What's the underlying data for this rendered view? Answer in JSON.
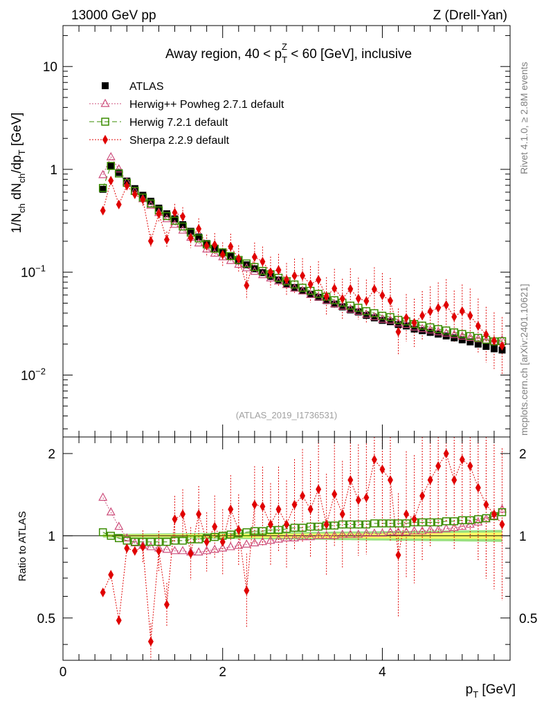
{
  "header": {
    "left": "13000 GeV pp",
    "right": "Z (Drell-Yan)"
  },
  "side_labels": {
    "rivet": "Rivet 4.1.0, ≥ 2.8M events",
    "mcplots": "mcplots.cern.ch [arXiv:2401.10621]"
  },
  "chart_data": {
    "type": "scatter",
    "title": "Away region, 40 < pTZ < 60 [GeV], inclusive",
    "title_parts": {
      "pre": "Away region, 40 < p",
      "sub": "T",
      "sup": "Z",
      "post": " < 60 [GeV], inclusive"
    },
    "analysis_tag": "(ATLAS_2019_I1736531)",
    "xlabel": "pT [GeV]",
    "ylabel": "1/Nch dNch/dpT [GeV]",
    "ratio_ylabel": "Ratio to ATLAS",
    "xlim": [
      0,
      5.6
    ],
    "ylim": [
      0.0025,
      25
    ],
    "ratio_ylim": [
      0.35,
      2.3
    ],
    "yscale": "log",
    "x_ticks": [
      "0",
      "2",
      "4"
    ],
    "y_ticks": [
      "10^-2",
      "10^-1",
      "1",
      "10"
    ],
    "ratio_ticks": [
      "0.5",
      "1",
      "2"
    ],
    "legend_position": "top-left",
    "x": [
      0.5,
      0.6,
      0.7,
      0.8,
      0.9,
      1.0,
      1.1,
      1.2,
      1.3,
      1.4,
      1.5,
      1.6,
      1.7,
      1.8,
      1.9,
      2.0,
      2.1,
      2.2,
      2.3,
      2.4,
      2.5,
      2.6,
      2.7,
      2.8,
      2.9,
      3.0,
      3.1,
      3.2,
      3.3,
      3.4,
      3.5,
      3.6,
      3.7,
      3.8,
      3.9,
      4.0,
      4.1,
      4.2,
      4.3,
      4.4,
      4.5,
      4.6,
      4.7,
      4.8,
      4.9,
      5.0,
      5.1,
      5.2,
      5.3,
      5.4,
      5.5
    ],
    "series": [
      {
        "name": "ATLAS",
        "color": "#000000",
        "marker": "square-filled",
        "values": [
          0.64,
          1.08,
          0.93,
          0.77,
          0.65,
          0.56,
          0.49,
          0.42,
          0.37,
          0.33,
          0.29,
          0.25,
          0.22,
          0.19,
          0.171,
          0.156,
          0.142,
          0.129,
          0.118,
          0.108,
          0.099,
          0.091,
          0.084,
          0.077,
          0.071,
          0.066,
          0.061,
          0.057,
          0.053,
          0.049,
          0.046,
          0.043,
          0.041,
          0.038,
          0.036,
          0.034,
          0.033,
          0.031,
          0.03,
          0.028,
          0.027,
          0.026,
          0.025,
          0.024,
          0.023,
          0.022,
          0.021,
          0.02,
          0.019,
          0.018,
          0.0175
        ]
      },
      {
        "name": "Herwig++ Powheg 2.7.1 default",
        "color": "#cc4c7a",
        "marker": "triangle-open",
        "ratio": [
          1.38,
          1.22,
          1.08,
          0.98,
          0.94,
          0.92,
          0.91,
          0.9,
          0.89,
          0.88,
          0.88,
          0.87,
          0.87,
          0.88,
          0.89,
          0.9,
          0.91,
          0.92,
          0.93,
          0.94,
          0.95,
          0.96,
          0.97,
          0.98,
          0.98,
          0.99,
          0.99,
          1.0,
          1.0,
          1.0,
          1.01,
          1.01,
          1.01,
          1.02,
          1.02,
          1.02,
          1.03,
          1.03,
          1.03,
          1.04,
          1.04,
          1.05,
          1.05,
          1.06,
          1.07,
          1.08,
          1.1,
          1.12,
          1.15,
          1.18,
          1.25
        ]
      },
      {
        "name": "Herwig 7.2.1 default",
        "color": "#3a8c00",
        "marker": "square-open",
        "ratio": [
          1.03,
          1.0,
          0.98,
          0.96,
          0.95,
          0.95,
          0.95,
          0.95,
          0.95,
          0.96,
          0.96,
          0.97,
          0.97,
          0.98,
          0.99,
          1.0,
          1.01,
          1.02,
          1.03,
          1.04,
          1.04,
          1.05,
          1.05,
          1.06,
          1.07,
          1.07,
          1.08,
          1.08,
          1.09,
          1.09,
          1.1,
          1.1,
          1.1,
          1.1,
          1.11,
          1.11,
          1.11,
          1.11,
          1.11,
          1.12,
          1.12,
          1.12,
          1.12,
          1.13,
          1.13,
          1.14,
          1.14,
          1.15,
          1.16,
          1.18,
          1.22
        ]
      },
      {
        "name": "Sherpa 2.2.9 default",
        "color": "#e00000",
        "marker": "diamond-filled",
        "ratio": [
          0.62,
          0.72,
          0.49,
          0.9,
          0.88,
          0.91,
          0.41,
          0.88,
          0.56,
          1.15,
          1.2,
          0.86,
          1.2,
          0.95,
          1.08,
          0.95,
          1.25,
          1.05,
          0.63,
          1.3,
          1.28,
          1.1,
          1.25,
          1.1,
          1.3,
          1.4,
          1.25,
          1.48,
          1.1,
          1.42,
          1.2,
          1.6,
          1.35,
          1.38,
          1.9,
          1.75,
          1.6,
          0.85,
          1.2,
          1.15,
          1.4,
          1.6,
          1.8,
          2.0,
          1.6,
          1.9,
          1.8,
          1.5,
          1.3,
          1.2,
          1.1
        ]
      }
    ],
    "band_colors": {
      "inner": "#ffff66",
      "outer": "#99e080"
    }
  }
}
